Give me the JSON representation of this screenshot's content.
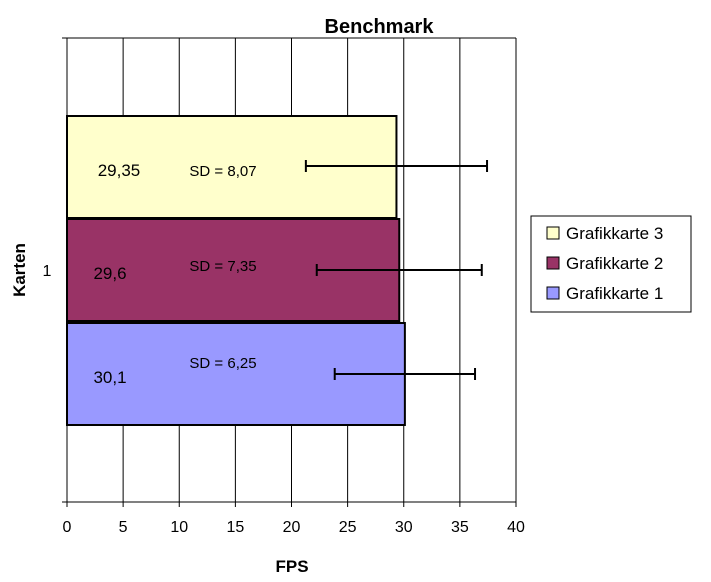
{
  "chart_data": {
    "type": "bar",
    "orientation": "horizontal",
    "title": "Benchmark",
    "xlabel": "FPS",
    "ylabel": "Karten",
    "categories": [
      "1"
    ],
    "xlim": [
      0,
      40
    ],
    "xticks": [
      0,
      5,
      10,
      15,
      20,
      25,
      30,
      35,
      40
    ],
    "grid": true,
    "legend_position": "right",
    "series": [
      {
        "name": "Grafikkarte 1",
        "color": "#9999ff",
        "values": [
          30.1
        ],
        "value_label": "30,1",
        "sd": 6.25,
        "sd_label": "SD = 6,25"
      },
      {
        "name": "Grafikkarte 2",
        "color": "#993366",
        "values": [
          29.6
        ],
        "value_label": "29,6",
        "sd": 7.35,
        "sd_label": "SD = 7,35"
      },
      {
        "name": "Grafikkarte 3",
        "color": "#ffffcc",
        "values": [
          29.35
        ],
        "value_label": "29,35",
        "sd": 8.07,
        "sd_label": "SD = 8,07"
      }
    ]
  }
}
